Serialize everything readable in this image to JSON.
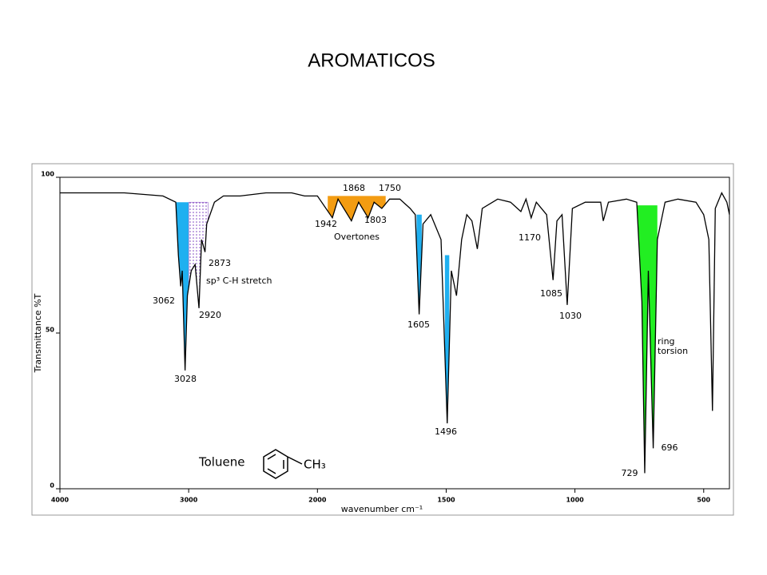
{
  "chart_data": {
    "type": "line",
    "title": "AROMATICOS",
    "x_label": "wavenumber cm⁻¹",
    "y_label": "Transmittance %T",
    "xlim": [
      4000,
      400
    ],
    "x_scale_change": {
      "at": 2000,
      "factor": 2
    },
    "xticks": [
      4000,
      3000,
      2000,
      1500,
      1000,
      500
    ],
    "ylim": [
      0,
      100
    ],
    "yticks": [
      0,
      50,
      100
    ],
    "color": "#000000",
    "x": [
      4000,
      3500,
      3200,
      3100,
      3080,
      3062,
      3050,
      3028,
      3010,
      2980,
      2950,
      2920,
      2900,
      2873,
      2860,
      2800,
      2730,
      2600,
      2400,
      2200,
      2100,
      2000,
      1942,
      1920,
      1868,
      1840,
      1803,
      1780,
      1750,
      1720,
      1680,
      1640,
      1620,
      1605,
      1590,
      1560,
      1520,
      1496,
      1480,
      1460,
      1440,
      1420,
      1400,
      1379,
      1360,
      1300,
      1250,
      1210,
      1190,
      1170,
      1150,
      1110,
      1085,
      1070,
      1050,
      1030,
      1010,
      960,
      900,
      890,
      870,
      800,
      760,
      740,
      729,
      715,
      696,
      680,
      650,
      600,
      530,
      500,
      480,
      466,
      455,
      430,
      410,
      400
    ],
    "values": [
      95,
      95,
      94,
      92,
      75,
      65,
      70,
      38,
      62,
      70,
      72,
      58,
      80,
      76,
      85,
      92,
      94,
      94,
      95,
      95,
      94,
      94,
      87,
      93,
      86,
      92,
      87,
      92,
      90,
      93,
      93,
      90,
      88,
      56,
      85,
      88,
      80,
      21,
      70,
      62,
      80,
      88,
      86,
      77,
      90,
      93,
      92,
      89,
      93,
      87,
      92,
      88,
      67,
      86,
      88,
      59,
      90,
      92,
      92,
      86,
      92,
      93,
      92,
      60,
      5,
      70,
      13,
      80,
      92,
      93,
      92,
      88,
      80,
      25,
      90,
      95,
      92,
      88
    ],
    "peak_labels": [
      3062,
      3028,
      2920,
      2873,
      1942,
      1868,
      1803,
      1750,
      1605,
      1496,
      1170,
      1085,
      1030,
      729,
      696
    ],
    "highlights": [
      {
        "from": 3100,
        "to": 3000,
        "level": 92,
        "color": "#1fb0f0"
      },
      {
        "from": 3000,
        "to": 2850,
        "level": 92,
        "color": "#7b3fbf",
        "label": [
          "sp³ C-H stretch"
        ]
      },
      {
        "from": 1960,
        "to": 1735,
        "level": 94,
        "color": "#f39c12",
        "label": [
          "Overtones"
        ]
      },
      {
        "from": 1615,
        "to": 1595,
        "level": 88,
        "color": "#1fb0f0"
      },
      {
        "from": 1505,
        "to": 1488,
        "level": 75,
        "color": "#1fb0f0"
      },
      {
        "from": 760,
        "to": 680,
        "level": 91,
        "color": "#22ee22",
        "label": [
          "ring",
          "torsion"
        ]
      }
    ],
    "molecule": {
      "name": "Toluene",
      "group": "CH₃"
    }
  }
}
